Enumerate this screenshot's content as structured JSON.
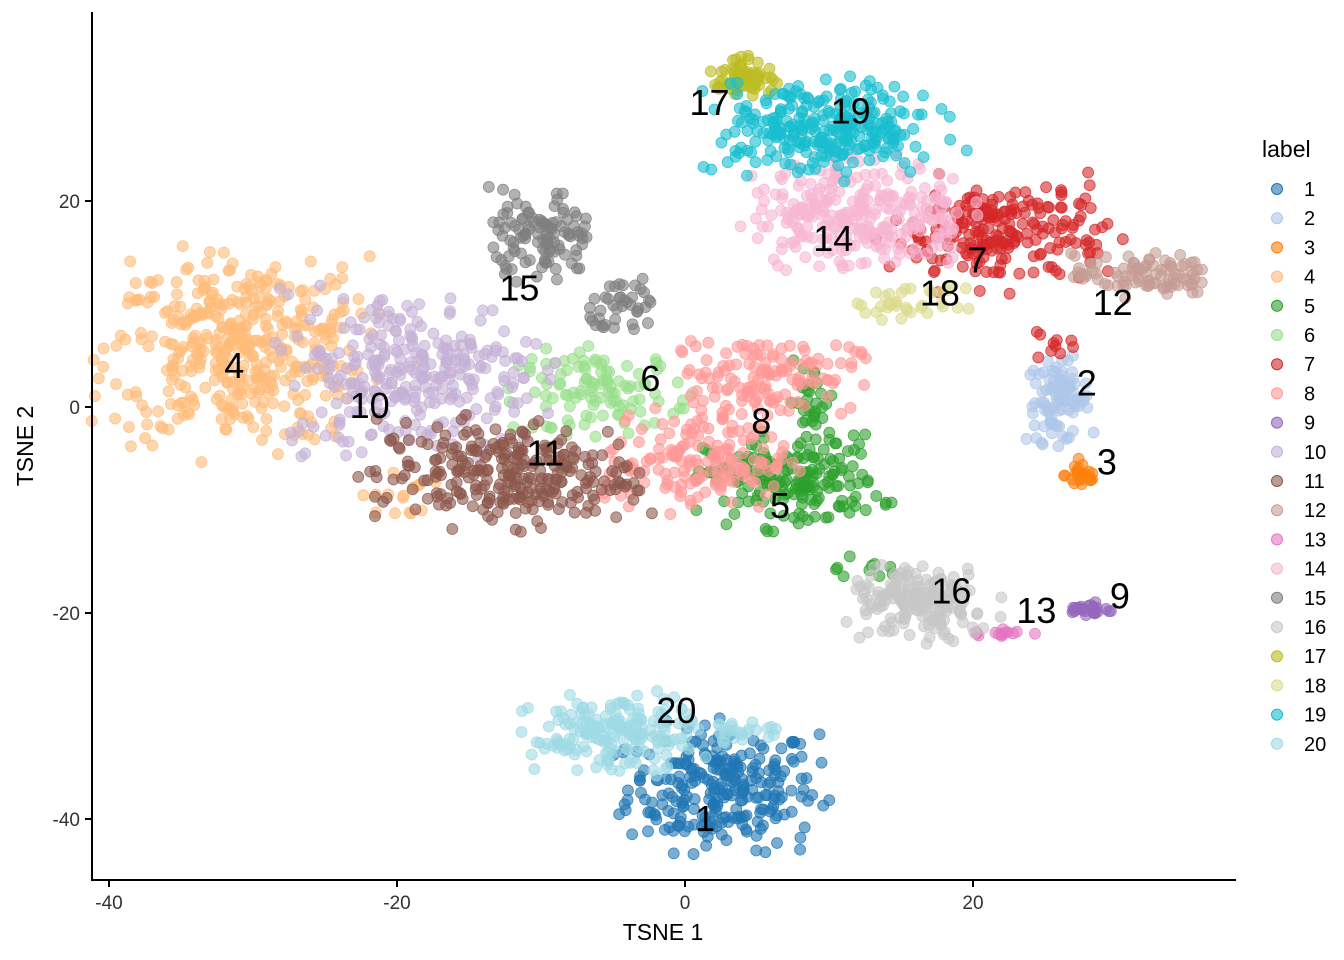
{
  "chart_data": {
    "type": "scatter",
    "title": "",
    "xlabel": "TSNE 1",
    "ylabel": "TSNE 2",
    "xlim": [
      -41.2,
      38.3
    ],
    "ylim": [
      -45.9,
      38.3
    ],
    "x_ticks": [
      -40,
      -20,
      0,
      20
    ],
    "y_ticks": [
      -40,
      -20,
      0,
      20
    ],
    "x_tick_labels": [
      "-40",
      "-20",
      "0",
      "20"
    ],
    "y_tick_labels": [
      "-40",
      "-20",
      "0",
      "20"
    ],
    "grid": false,
    "point_alpha": 0.6,
    "legend": {
      "title": "label",
      "position": "right"
    },
    "note_points": "approximate cluster distributions (center, spread in TSNE units, approx. point count)",
    "clusters": [
      {
        "name": "1",
        "color": "#1F77B4",
        "label_pos": [
          1.4,
          -39.9
        ],
        "blobs": [
          {
            "center": [
              2.6,
              -37.0
            ],
            "sd": [
              3.3,
              3.0
            ],
            "n": 260
          }
        ]
      },
      {
        "name": "2",
        "color": "#AEC7E8",
        "label_pos": [
          27.9,
          2.4
        ],
        "blobs": [
          {
            "center": [
              25.9,
              0.6
            ],
            "sd": [
              1.1,
              2.0
            ],
            "n": 90
          }
        ]
      },
      {
        "name": "3",
        "color": "#FF7F0E",
        "label_pos": [
          29.3,
          -5.3
        ],
        "blobs": [
          {
            "center": [
              27.6,
              -6.6
            ],
            "sd": [
              0.6,
              0.8
            ],
            "n": 25
          }
        ]
      },
      {
        "name": "4",
        "color": "#FFBB78",
        "label_pos": [
          -31.3,
          4.1
        ],
        "blobs": [
          {
            "center": [
              -31.0,
              5.5
            ],
            "sd": [
              4.5,
              4.5
            ],
            "n": 420
          },
          {
            "center": [
              -20.0,
              -8.5
            ],
            "sd": [
              1.2,
              1.2
            ],
            "n": 15
          }
        ]
      },
      {
        "name": "5",
        "color": "#2CA02C",
        "label_pos": [
          6.6,
          -9.5
        ],
        "blobs": [
          {
            "center": [
              7.5,
              -7.2
            ],
            "sd": [
              3.0,
              2.2
            ],
            "n": 180
          },
          {
            "center": [
              8.8,
              0.5
            ],
            "sd": [
              0.8,
              1.8
            ],
            "n": 30
          },
          {
            "center": [
              11.8,
              -15.5
            ],
            "sd": [
              1.5,
              0.6
            ],
            "n": 10
          }
        ]
      },
      {
        "name": "6",
        "color": "#98DF8A",
        "label_pos": [
          -2.4,
          2.8
        ],
        "blobs": [
          {
            "center": [
              -5.5,
              1.5
            ],
            "sd": [
              3.0,
              2.0
            ],
            "n": 110
          }
        ]
      },
      {
        "name": "7",
        "color": "#D62728",
        "label_pos": [
          20.3,
          14.3
        ],
        "blobs": [
          {
            "center": [
              21.8,
              16.8
            ],
            "sd": [
              3.8,
              2.6
            ],
            "n": 220
          },
          {
            "center": [
              25.3,
              5.8
            ],
            "sd": [
              0.8,
              0.8
            ],
            "n": 10
          }
        ]
      },
      {
        "name": "8",
        "color": "#FF9896",
        "label_pos": [
          5.3,
          -1.3
        ],
        "blobs": [
          {
            "center": [
              5.5,
              3.2
            ],
            "sd": [
              3.2,
              1.8
            ],
            "n": 130
          },
          {
            "center": [
              0.8,
              -5.2
            ],
            "sd": [
              3.2,
              2.4
            ],
            "n": 170
          }
        ]
      },
      {
        "name": "9",
        "color": "#9467BD",
        "label_pos": [
          30.2,
          -18.3
        ],
        "blobs": [
          {
            "center": [
              28.2,
              -19.7
            ],
            "sd": [
              0.7,
              0.35
            ],
            "n": 25
          }
        ]
      },
      {
        "name": "10",
        "color": "#C5B0D5",
        "label_pos": [
          -21.9,
          0.2
        ],
        "blobs": [
          {
            "center": [
              -19.0,
              3.5
            ],
            "sd": [
              4.5,
              3.8
            ],
            "n": 300
          }
        ]
      },
      {
        "name": "11",
        "color": "#8C564B",
        "label_pos": [
          -9.7,
          -4.4
        ],
        "blobs": [
          {
            "center": [
              -12.5,
              -6.5
            ],
            "sd": [
              4.5,
              2.5
            ],
            "n": 280
          }
        ]
      },
      {
        "name": "12",
        "color": "#C49C94",
        "label_pos": [
          29.7,
          10.2
        ],
        "blobs": [
          {
            "center": [
              31.8,
              12.8
            ],
            "sd": [
              2.4,
              1.0
            ],
            "n": 90
          }
        ]
      },
      {
        "name": "13",
        "color": "#E377C2",
        "label_pos": [
          24.4,
          -19.7
        ],
        "blobs": [
          {
            "center": [
              21.9,
              -21.9
            ],
            "sd": [
              1.1,
              0.25
            ],
            "n": 15
          }
        ]
      },
      {
        "name": "14",
        "color": "#F7B6D2",
        "label_pos": [
          10.3,
          16.4
        ],
        "blobs": [
          {
            "center": [
              12.2,
              18.8
            ],
            "sd": [
              3.8,
              2.6
            ],
            "n": 280
          }
        ]
      },
      {
        "name": "15",
        "color": "#7F7F7F",
        "label_pos": [
          -11.5,
          11.6
        ],
        "blobs": [
          {
            "center": [
              -10.0,
              16.5
            ],
            "sd": [
              1.8,
              2.2
            ],
            "n": 110
          },
          {
            "center": [
              -4.0,
              10.0
            ],
            "sd": [
              1.3,
              1.5
            ],
            "n": 40
          }
        ]
      },
      {
        "name": "16",
        "color": "#C7C7C7",
        "label_pos": [
          18.5,
          -17.8
        ],
        "blobs": [
          {
            "center": [
              16.3,
              -19.2
            ],
            "sd": [
              2.5,
              1.8
            ],
            "n": 170
          }
        ]
      },
      {
        "name": "17",
        "color": "#BCBD22",
        "label_pos": [
          1.7,
          29.6
        ],
        "blobs": [
          {
            "center": [
              3.9,
              32.3
            ],
            "sd": [
              1.1,
              0.9
            ],
            "n": 70
          }
        ]
      },
      {
        "name": "18",
        "color": "#DBDB8D",
        "label_pos": [
          17.7,
          11.1
        ],
        "blobs": [
          {
            "center": [
              15.6,
              10.0
            ],
            "sd": [
              2.0,
              0.8
            ],
            "n": 35
          }
        ]
      },
      {
        "name": "19",
        "color": "#17BECF",
        "label_pos": [
          11.5,
          28.8
        ],
        "blobs": [
          {
            "center": [
              9.8,
              27.0
            ],
            "sd": [
              3.8,
              2.3
            ],
            "n": 280
          }
        ]
      },
      {
        "name": "20",
        "color": "#9EDAE5",
        "label_pos": [
          -0.6,
          -29.4
        ],
        "blobs": [
          {
            "center": [
              -5.0,
              -31.8
            ],
            "sd": [
              2.8,
              1.9
            ],
            "n": 180
          },
          {
            "center": [
              4.0,
              -31.5
            ],
            "sd": [
              1.5,
              0.5
            ],
            "n": 25
          }
        ]
      }
    ]
  }
}
